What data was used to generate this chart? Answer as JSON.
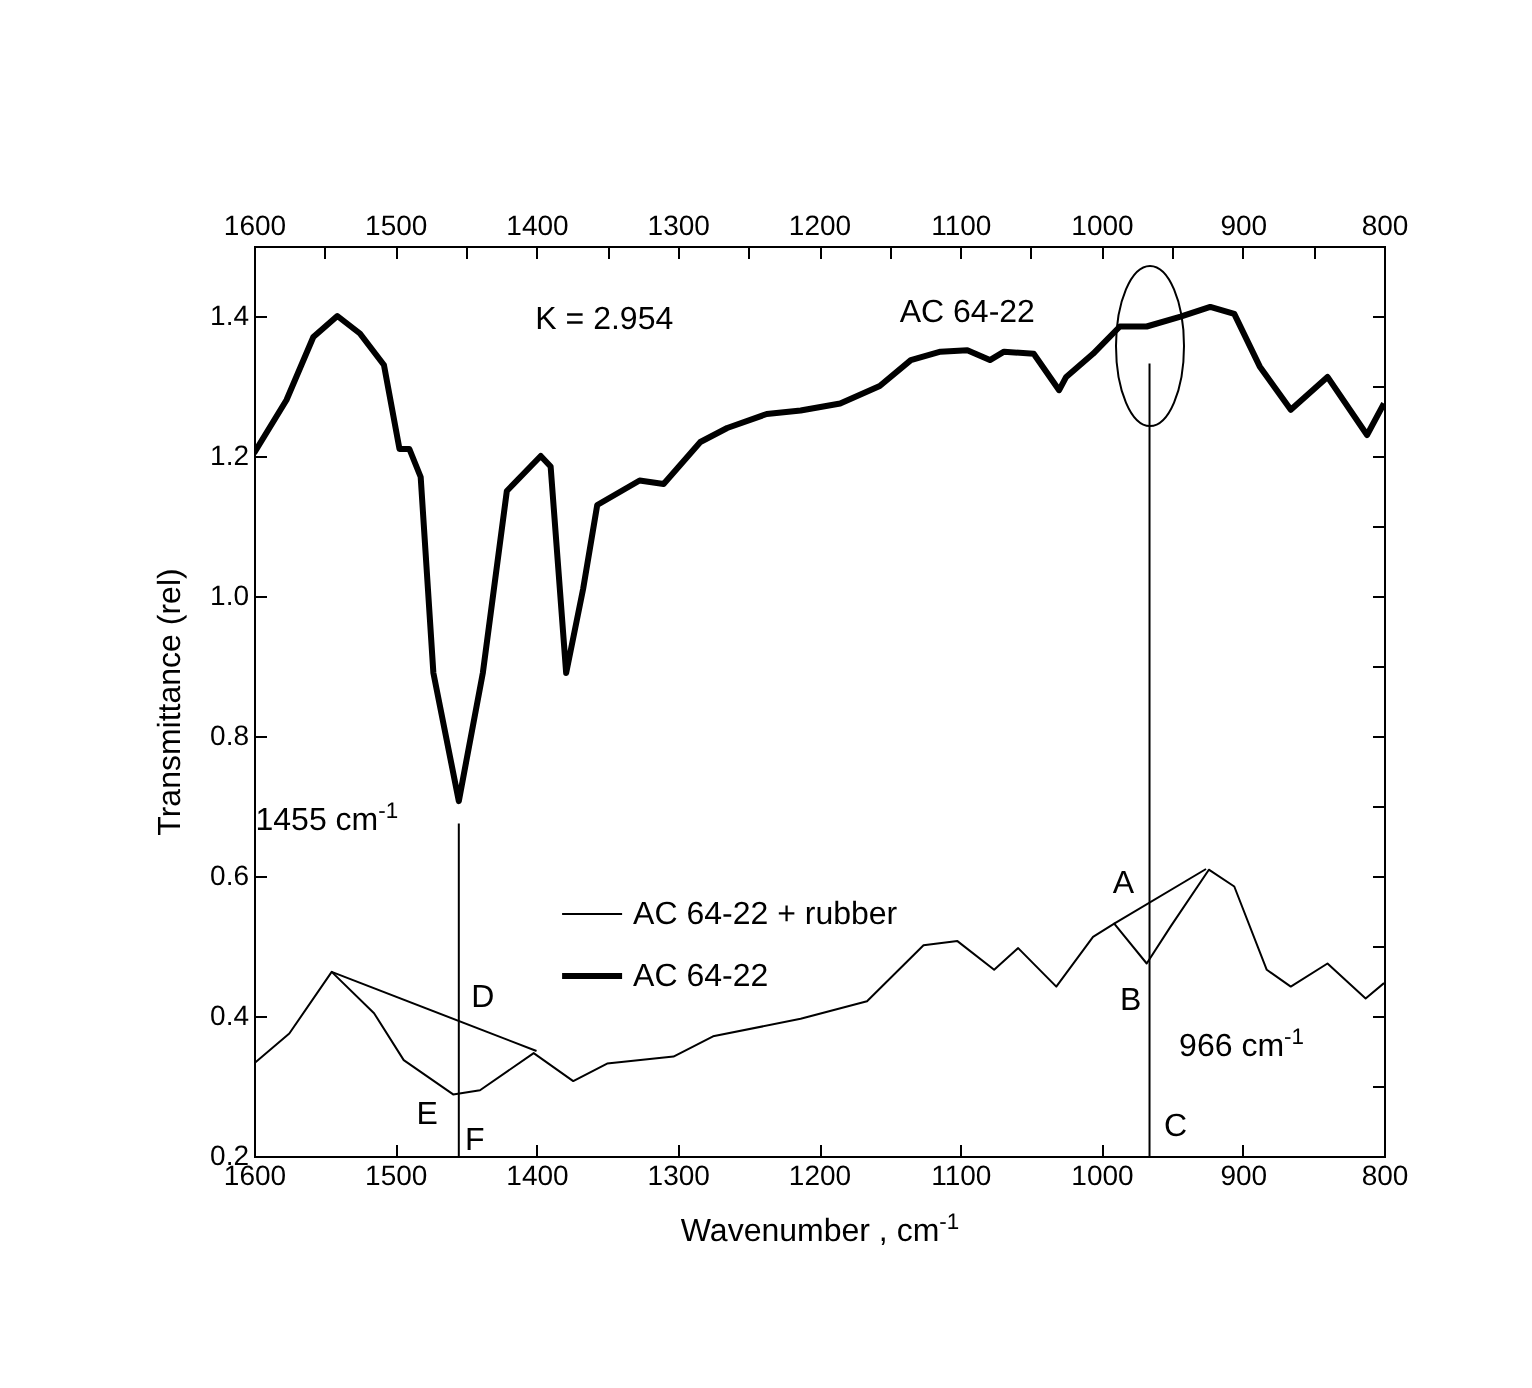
{
  "chart_data": {
    "type": "line",
    "xlabel": "Wavenumber , cm$^{-1}$",
    "ylabel": "Transmittance (rel)",
    "xlim": [
      1600,
      800
    ],
    "x2lim": [
      1600,
      800
    ],
    "ylim": [
      0.2,
      1.5
    ],
    "xticks": [
      1600,
      {
        "value": 1550,
        "label": null
      },
      1500,
      {
        "value": 1450,
        "label": null
      },
      1400,
      {
        "value": 1350,
        "label": null
      },
      1300,
      {
        "value": 1250,
        "label": null
      },
      1200,
      {
        "value": 1150,
        "label": null
      },
      1100,
      {
        "value": 1050,
        "label": null
      },
      1000,
      {
        "value": 950,
        "label": null
      },
      900,
      {
        "value": 850,
        "label": null
      },
      800
    ],
    "x2ticks": [
      1600,
      {
        "value": 1550,
        "label": null
      },
      1500,
      {
        "value": 1450,
        "label": null
      },
      1400,
      {
        "value": 1350,
        "label": null
      },
      1300,
      {
        "value": 1250,
        "label": null
      },
      1200,
      {
        "value": 1150,
        "label": null
      },
      1100,
      {
        "value": 1050,
        "label": null
      },
      1000,
      {
        "value": 950,
        "label": null
      },
      900,
      {
        "value": 850,
        "label": null
      },
      800
    ],
    "yticks": [
      0.2,
      {
        "value": 0.3,
        "label": null
      },
      0.4,
      {
        "value": 0.5,
        "label": null
      },
      0.6,
      {
        "value": 0.7,
        "label": null
      },
      0.8,
      {
        "value": 0.9,
        "label": null
      },
      {
        "value": 1,
        "label": "1.0"
      },
      {
        "value": 1.1,
        "label": null
      },
      1.2,
      {
        "value": 1.3,
        "label": null
      },
      1.4
    ],
    "legend": "center",
    "grid": false,
    "series": [
      {
        "name": "AC 64-22 + rubber",
        "color": "#000000",
        "x": [
          1600,
          1575,
          1545,
          1515,
          1494,
          1459,
          1440,
          1402,
          1374,
          1350,
          1303,
          1275,
          1213,
          1166,
          1126,
          1102,
          1076,
          1059,
          1032,
          1006,
          991,
          968,
          951,
          924,
          906,
          883,
          866,
          840,
          813,
          800
        ],
        "values": [
          0.332,
          0.375,
          0.463,
          0.404,
          0.337,
          0.288,
          0.294,
          0.347,
          0.307,
          0.332,
          0.342,
          0.371,
          0.396,
          0.421,
          0.501,
          0.507,
          0.466,
          0.497,
          0.442,
          0.513,
          0.532,
          0.475,
          0.528,
          0.609,
          0.585,
          0.466,
          0.442,
          0.475,
          0.425,
          0.447
        ]
      },
      {
        "name": "AC 64-22",
        "color": "#000000",
        "x": [
          1600,
          1577,
          1558,
          1541,
          1525,
          1508,
          1497,
          1490,
          1482,
          1473,
          1455,
          1438,
          1421,
          1397,
          1390,
          1379,
          1367,
          1357,
          1327,
          1310,
          1284,
          1265,
          1237,
          1213,
          1185,
          1157,
          1135,
          1114,
          1095,
          1079,
          1069,
          1048,
          1030,
          1025,
          1006,
          987,
          968,
          944,
          923,
          906,
          888,
          866,
          840,
          812,
          800
        ],
        "values": [
          1.204,
          1.28,
          1.37,
          1.4,
          1.375,
          1.33,
          1.21,
          1.21,
          1.17,
          0.89,
          0.707,
          0.89,
          1.15,
          1.2,
          1.185,
          0.89,
          1.01,
          1.13,
          1.165,
          1.16,
          1.22,
          1.24,
          1.26,
          1.265,
          1.275,
          1.3,
          1.337,
          1.349,
          1.351,
          1.337,
          1.349,
          1.346,
          1.294,
          1.313,
          1.346,
          1.385,
          1.385,
          1.399,
          1.413,
          1.403,
          1.328,
          1.266,
          1.313,
          1.23,
          1.275
        ]
      },
      {
        "color": "#000000",
        "x": [
          1545,
          1400
        ],
        "values": [
          0.463,
          0.35
        ]
      },
      {
        "color": "#000000",
        "x": [
          991,
          926
        ],
        "values": [
          0.532,
          0.61
        ]
      },
      {
        "color": "#000000",
        "x": [
          1455,
          1455
        ],
        "values": [
          0.2,
          0.675
        ]
      },
      {
        "color": "#000000",
        "x": [
          966,
          966
        ],
        "values": [
          0.2,
          1.332
        ]
      }
    ],
    "annotations": [
      "K = 2.954",
      {
        "text": "AC 64-22",
        "x": 1095,
        "y": 1.351
      },
      {
        "text": "1455 cm$^{-1}$",
        "x": 1455,
        "y": 0.675
      },
      {
        "text": "966 cm$^{-1}$",
        "x": 966,
        "y": 0.357
      },
      {
        "text": "A",
        "x": 966,
        "y": 0.573
      },
      {
        "text": "B",
        "x": 968,
        "y": 0.475
      },
      {
        "text": "C",
        "x": 966,
        "y": 0.2
      },
      {
        "text": "D",
        "x": 1455,
        "y": 0.393
      },
      {
        "text": "E",
        "x": 1459,
        "y": 0.288
      },
      {
        "text": "F",
        "x": 1455,
        "y": 0.2
      }
    ]
  }
}
